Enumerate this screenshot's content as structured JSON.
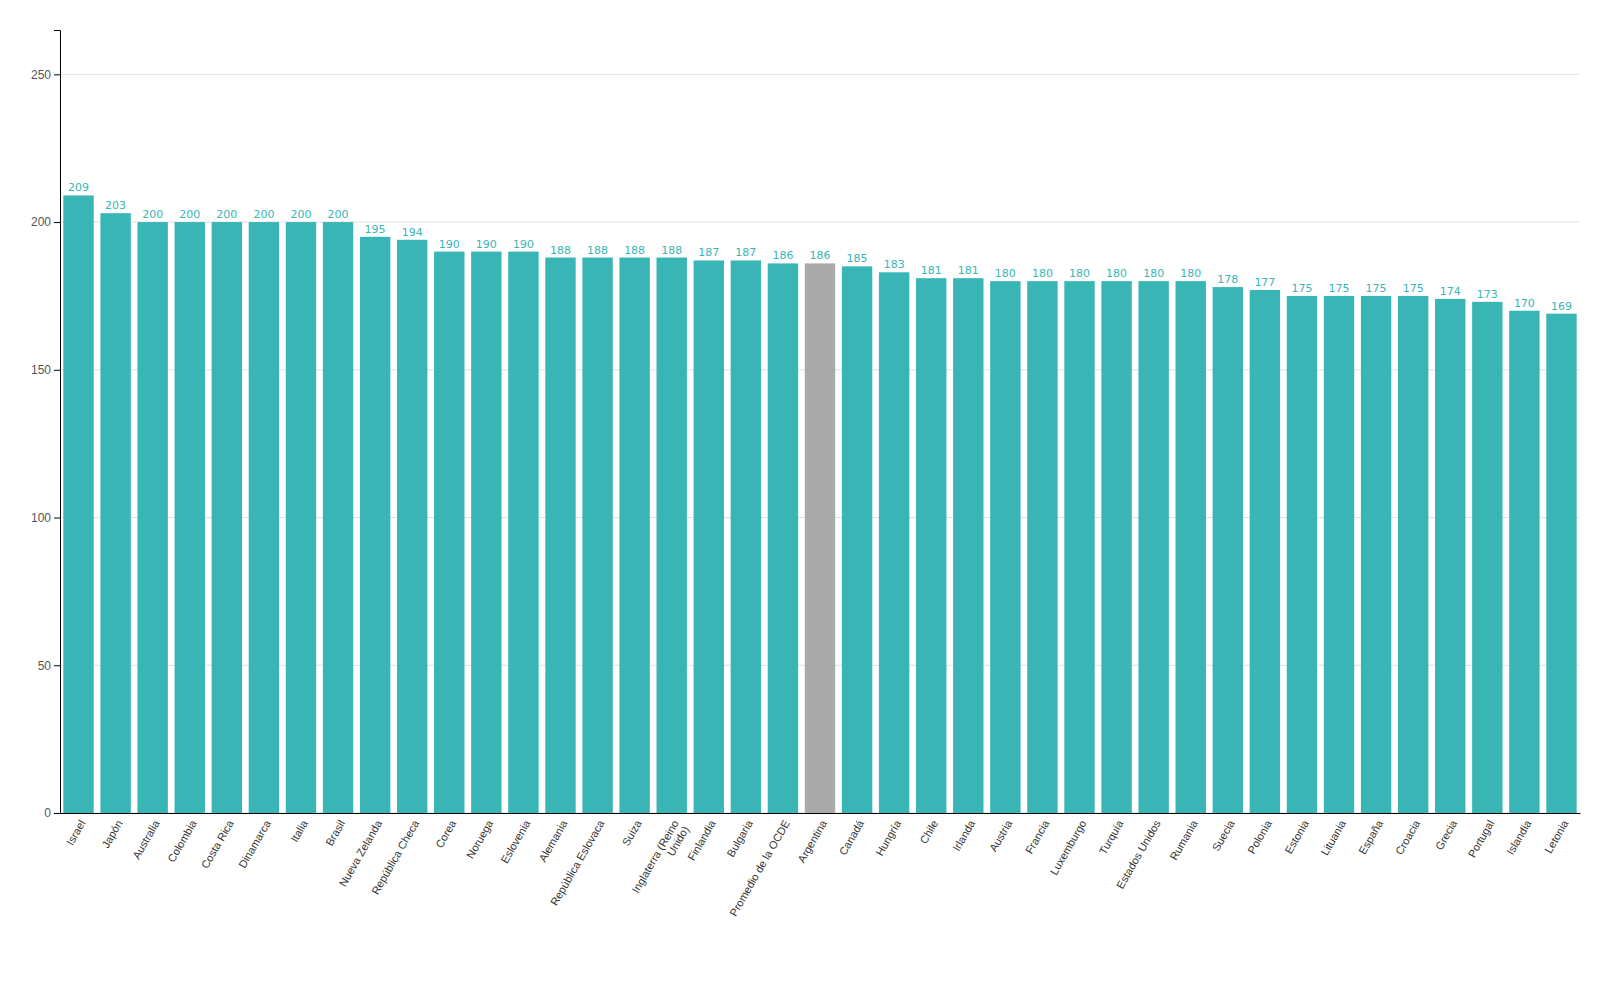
{
  "chart_data": {
    "type": "bar",
    "categories": [
      "Israel",
      "Japón",
      "Australia",
      "Colombia",
      "Costa Rica",
      "Dinamarca",
      "Italia",
      "Brasil",
      "Nueva Zelanda",
      "República Checa",
      "Corea",
      "Noruega",
      "Eslovenia",
      "Alemania",
      "República Eslovaca",
      "Suiza",
      "Inglaterra (Reino\nUnido)",
      "Finlandia",
      "Bulgaria",
      "Promedio de la OCDE",
      "Argentina",
      "Canadá",
      "Hungría",
      "Chile",
      "Irlanda",
      "Austria",
      "Francia",
      "Luxemburgo",
      "Turquía",
      "Estados Unidos",
      "Rumania",
      "Suecia",
      "Polonia",
      "Estonia",
      "Lituania",
      "España",
      "Croacia",
      "Grecia",
      "Portugal",
      "Islandia",
      "Letonia"
    ],
    "values": [
      209,
      203,
      200,
      200,
      200,
      200,
      200,
      200,
      195,
      194,
      190,
      190,
      190,
      188,
      188,
      188,
      188,
      187,
      187,
      186,
      186,
      185,
      183,
      181,
      181,
      180,
      180,
      180,
      180,
      180,
      180,
      178,
      177,
      175,
      175,
      175,
      175,
      174,
      173,
      170,
      169
    ],
    "color": "#3ab5b5",
    "colors": [
      "#3ab5b5",
      "#3ab5b5",
      "#3ab5b5",
      "#3ab5b5",
      "#3ab5b5",
      "#3ab5b5",
      "#3ab5b5",
      "#3ab5b5",
      "#3ab5b5",
      "#3ab5b5",
      "#3ab5b5",
      "#3ab5b5",
      "#3ab5b5",
      "#3ab5b5",
      "#3ab5b5",
      "#3ab5b5",
      "#3ab5b5",
      "#3ab5b5",
      "#3ab5b5",
      "#3ab5b5",
      "#aaaaaa",
      "#3ab5b5",
      "#3ab5b5",
      "#3ab5b5",
      "#3ab5b5",
      "#3ab5b5",
      "#3ab5b5",
      "#3ab5b5",
      "#3ab5b5",
      "#3ab5b5",
      "#3ab5b5",
      "#3ab5b5",
      "#3ab5b5",
      "#3ab5b5",
      "#3ab5b5",
      "#3ab5b5",
      "#3ab5b5",
      "#3ab5b5",
      "#3ab5b5",
      "#3ab5b5",
      "#3ab5b5"
    ],
    "ylim": [
      0,
      265
    ],
    "yticks": [
      0,
      50,
      100,
      150,
      200,
      250
    ],
    "grid": true,
    "data_labels": true
  }
}
